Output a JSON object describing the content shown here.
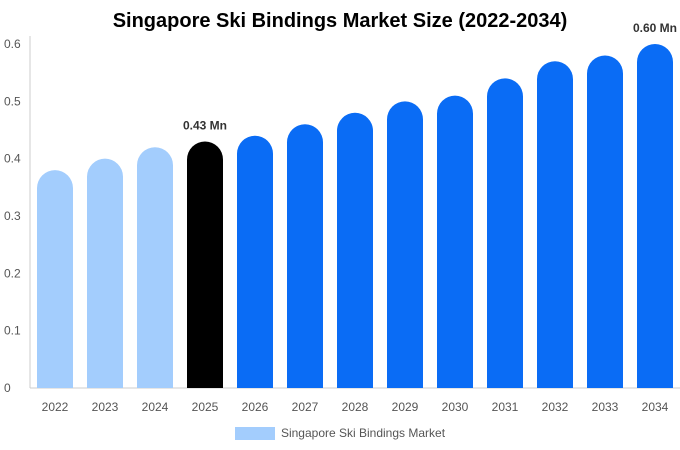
{
  "chart_data": {
    "type": "bar",
    "title": "Singapore Ski Bindings Market Size (2022-2034)",
    "xlabel": "",
    "ylabel": "",
    "categories": [
      "2022",
      "2023",
      "2024",
      "2025",
      "2026",
      "2027",
      "2028",
      "2029",
      "2030",
      "2031",
      "2032",
      "2033",
      "2034"
    ],
    "series": [
      {
        "name": "Singapore Ski Bindings Market",
        "values": [
          0.38,
          0.4,
          0.42,
          0.43,
          0.44,
          0.46,
          0.48,
          0.5,
          0.51,
          0.54,
          0.57,
          0.58,
          0.6
        ]
      }
    ],
    "ylim": [
      0,
      0.6
    ],
    "yticks": [
      "0",
      "0.1",
      "0.2",
      "0.3",
      "0.4",
      "0.5",
      "0.6"
    ],
    "data_labels": [
      {
        "category": "2025",
        "text": "0.43 Mn"
      },
      {
        "category": "2034",
        "text": "0.60 Mn"
      }
    ],
    "colors": {
      "historical": "#a3cdfd",
      "current": "#000000",
      "forecast": "#0a6cf5",
      "axis": "#cccccc"
    },
    "highlight_category": "2025",
    "grid": false,
    "legend_position": "bottom"
  }
}
